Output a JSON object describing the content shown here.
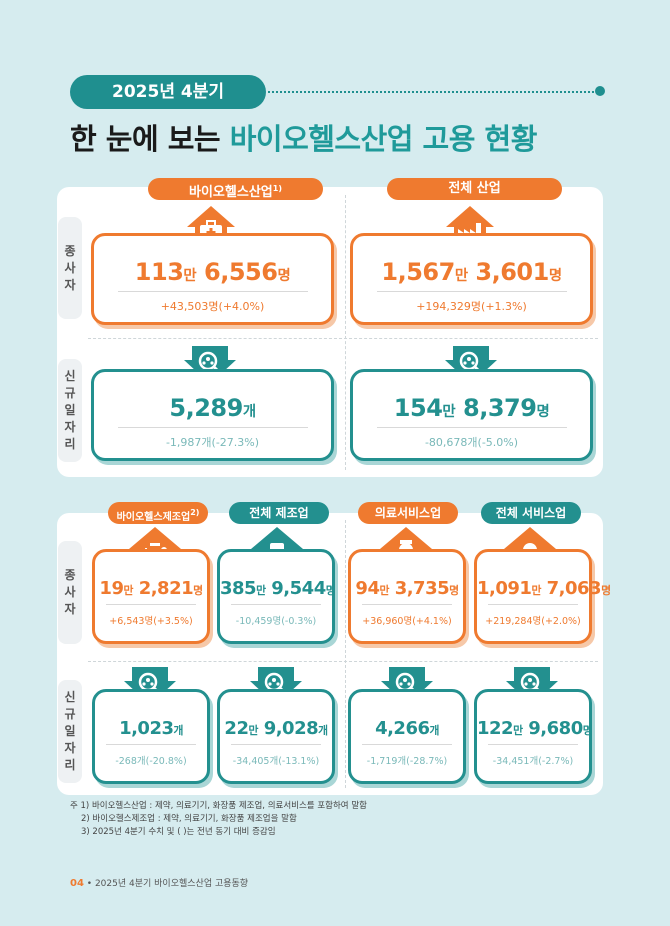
{
  "header": {
    "period": "2025년 4분기",
    "title_plain": "한 눈에 보는 ",
    "title_accent": "바이오헬스산업 고용 현황"
  },
  "row_labels": {
    "employed": [
      "종",
      "사",
      "자"
    ],
    "new_jobs": [
      "신",
      "규",
      "일",
      "자",
      "리"
    ]
  },
  "top": {
    "bio": {
      "label": "바이오헬스산업",
      "mark": "1)",
      "employed_main": "113",
      "employed_unit1": "만",
      "employed_rest": " 6,556",
      "employed_unit2": "명",
      "employed_change": "+43,503명(+4.0%)",
      "jobs_main": "5,289",
      "jobs_unit": "개",
      "jobs_change": "-1,987개(-27.3%)"
    },
    "all": {
      "label": "전체 산업",
      "employed_main": "1,567",
      "employed_unit1": "만",
      "employed_rest": " 3,601",
      "employed_unit2": "명",
      "employed_change": "+194,329명(+1.3%)",
      "jobs_main": "154",
      "jobs_unit1": "만",
      "jobs_rest": " 8,379",
      "jobs_unit2": "명",
      "jobs_change": "-80,678개(-5.0%)"
    }
  },
  "bottom": [
    {
      "label": "바이오헬스제조업",
      "mark": "2)",
      "tag_color": "orange",
      "e_main": "19",
      "e_u1": "만",
      "e_rest": " 2,821",
      "e_u2": "명",
      "e_change": "+6,543명(+3.5%)",
      "j_main": "",
      "j_u1": "",
      "j_rest": "1,023",
      "j_u2": "개",
      "j_change": "-268개(-20.8%)"
    },
    {
      "label": "전체 제조업",
      "mark": "",
      "tag_color": "teal",
      "e_main": "385",
      "e_u1": "만",
      "e_rest": " 9,544",
      "e_u2": "명",
      "e_change": "-10,459명(-0.3%)",
      "j_main": "22",
      "j_u1": "만",
      "j_rest": " 9,028",
      "j_u2": "개",
      "j_change": "-34,405개(-13.1%)"
    },
    {
      "label": "의료서비스업",
      "mark": "",
      "tag_color": "orange",
      "e_main": "94",
      "e_u1": "만",
      "e_rest": " 3,735",
      "e_u2": "명",
      "e_change": "+36,960명(+4.1%)",
      "j_main": "",
      "j_u1": "",
      "j_rest": "4,266",
      "j_u2": "개",
      "j_change": "-1,719개(-28.7%)"
    },
    {
      "label": "전체 서비스업",
      "mark": "",
      "tag_color": "teal",
      "e_main": "1,091",
      "e_u1": "만",
      "e_rest": " 7,063",
      "e_u2": "명",
      "e_change": "+219,284명(+2.0%)",
      "j_main": "122",
      "j_u1": "만",
      "j_rest": " 9,680",
      "j_u2": "명",
      "j_change": "-34,451개(-2.7%)"
    }
  ],
  "footnotes": [
    "주 1) 바이오헬스산업 : 제약, 의료기기, 화장품 제조업, 의료서비스를 포함하여 말함",
    "2) 바이오헬스제조업 : 제약, 의료기기, 화장품 제조업을 말함",
    "3) 2025년 4분기 수치 및 ( )는 전년 동기 대비 증감임"
  ],
  "footer": {
    "page": "04",
    "text": " • 2025년 4분기 바이오헬스산업 고용동향"
  },
  "colors": {
    "orange": "#ef7a2f",
    "teal": "#23908f",
    "background": "#d6ecef"
  },
  "icons": [
    "hospital-kit-icon",
    "factory-icon",
    "job-search-icon",
    "medical-tools-icon",
    "conveyor-robot-icon",
    "nurse-icon",
    "service-worker-icon"
  ]
}
